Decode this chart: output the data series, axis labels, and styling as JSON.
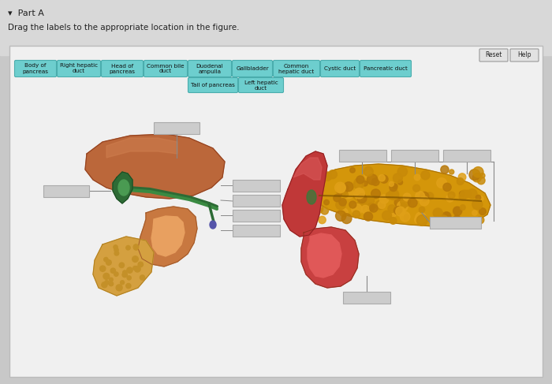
{
  "bg_color": "#c8c8c8",
  "panel_bg": "#f0f0f0",
  "panel_border": "#bbbbbb",
  "outer_top_bg": "#d8d8d8",
  "label_bg": "#6dcece",
  "label_border": "#4aadad",
  "label_text_color": "#111111",
  "button_bg": "#e8e8e8",
  "button_border": "#aaaaaa",
  "empty_box_fill": "#cccccc",
  "empty_box_edge": "#aaaaaa",
  "labels_row1": [
    "Body of\npancreas",
    "Right hepatic\nduct",
    "Head of\npancreas",
    "Common bile\nduct",
    "Duodenal\nampulla",
    "Gallbladder",
    "Common\nhepatic duct",
    "Cystic duct",
    "Pancreatic duct"
  ],
  "labels_row2": [
    "Tail of pancreas",
    "Left hepatic\nduct"
  ],
  "reset_btn": "Reset",
  "help_btn": "Help",
  "title": "▾  Part A",
  "instruction": "Drag the labels to the appropriate location in the figure."
}
